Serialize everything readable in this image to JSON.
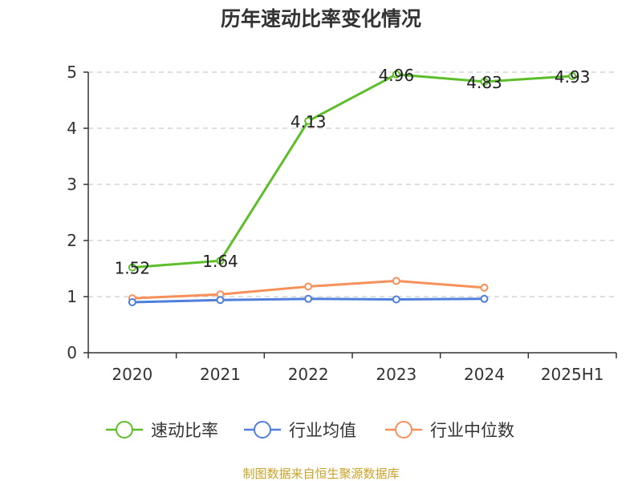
{
  "chart_data": {
    "type": "line",
    "title": "历年速动比率变化情况",
    "categories": [
      "2020",
      "2021",
      "2022",
      "2023",
      "2024",
      "2025H1"
    ],
    "yticks": [
      "0",
      "1",
      "2",
      "3",
      "4",
      "5"
    ],
    "ylim": [
      0,
      5
    ],
    "grid": true,
    "legend_position": "bottom",
    "series": [
      {
        "name": "速动比率",
        "color": "#5cbf2a",
        "values": [
          1.52,
          1.64,
          4.13,
          4.96,
          4.83,
          4.93
        ],
        "labels": [
          "1.52",
          "1.64",
          "4.13",
          "4.96",
          "4.83",
          "4.93"
        ]
      },
      {
        "name": "行业均值",
        "color": "#4f7fdb",
        "values": [
          0.9,
          0.94,
          0.96,
          0.95,
          0.96,
          null
        ]
      },
      {
        "name": "行业中位数",
        "color": "#f7905a",
        "values": [
          0.97,
          1.04,
          1.18,
          1.28,
          1.16,
          null
        ]
      }
    ]
  },
  "source": "制图数据来自恒生聚源数据库"
}
